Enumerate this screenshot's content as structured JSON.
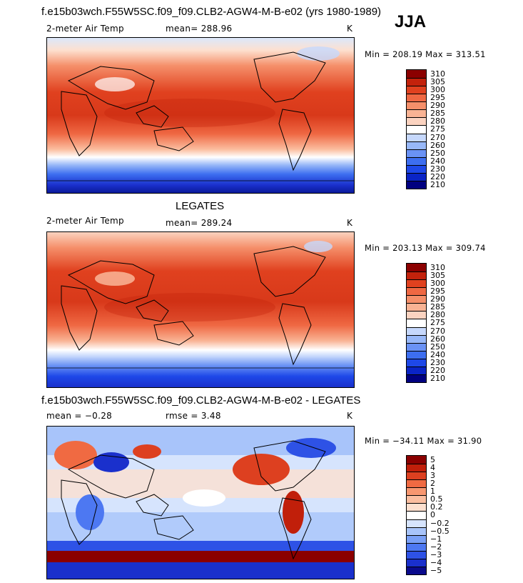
{
  "season": "JJA",
  "palette": {
    "temp": [
      "#000080",
      "#0a24c6",
      "#1e48e8",
      "#3d6ef0",
      "#6a92f5",
      "#98b8f8",
      "#c6d8fc",
      "#ffffff",
      "#fbd3c0",
      "#f9b394",
      "#f58f6a",
      "#ef6843",
      "#e0411f",
      "#c3220c",
      "#8b0000"
    ],
    "diff": [
      "#0a0a8c",
      "#1a30cc",
      "#2e52e6",
      "#4d78f2",
      "#7aa0f6",
      "#a8c4fa",
      "#d6e4fd",
      "#ffffff",
      "#fde0cf",
      "#fbbea0",
      "#f89770",
      "#f06a42",
      "#dd4020",
      "#c11f0a",
      "#8b0000"
    ]
  },
  "panels": [
    {
      "id": "model",
      "title": "f.e15b03wch.F55W5SC.f09_f09.CLB2-AGW4-M-B-e02 (yrs 1980-1989)",
      "variable": "2-meter Air Temp",
      "mean_label": "mean= 288.96",
      "units": "K",
      "minmax": "Min = 208.19 Max = 313.51",
      "colorbar_levels": [
        "310",
        "305",
        "300",
        "295",
        "290",
        "285",
        "280",
        "275",
        "270",
        "260",
        "250",
        "240",
        "230",
        "220",
        "210"
      ]
    },
    {
      "id": "obs",
      "title": "LEGATES",
      "variable": "2-meter Air Temp",
      "mean_label": "mean= 289.24",
      "units": "K",
      "minmax": "Min = 203.13 Max = 309.74",
      "colorbar_levels": [
        "310",
        "305",
        "300",
        "295",
        "290",
        "285",
        "280",
        "275",
        "270",
        "260",
        "250",
        "240",
        "230",
        "220",
        "210"
      ]
    },
    {
      "id": "diff",
      "title": "f.e15b03wch.F55W5SC.f09_f09.CLB2-AGW4-M-B-e02 - LEGATES",
      "mean_label": "mean =  −0.28",
      "rmse_label": "rmse =    3.48",
      "units": "K",
      "minmax": "Min = −34.11 Max =  31.90",
      "colorbar_levels": [
        "5",
        "4",
        "3",
        "2",
        "1",
        "0.5",
        "0.2",
        "0",
        "−0.2",
        "−0.5",
        "−1",
        "−2",
        "−3",
        "−4",
        "−5"
      ]
    }
  ]
}
